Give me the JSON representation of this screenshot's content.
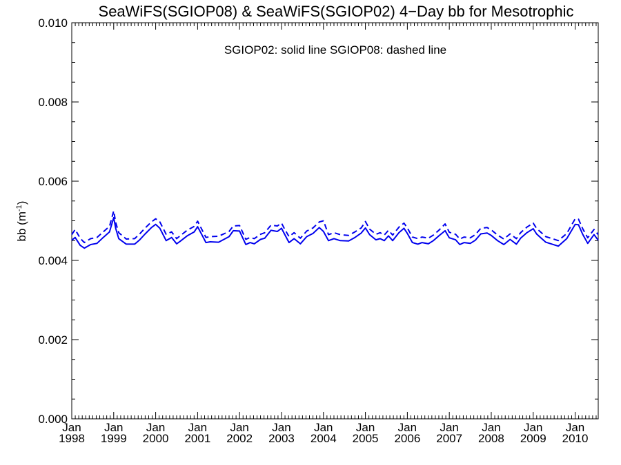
{
  "chart_data": {
    "type": "line",
    "title": "SeaWiFS(SGIOP08) & SeaWiFS(SGIOP02) 4−Day bb for Mesotrophic",
    "annotation": "SGIOP02: solid line   SGIOP08: dashed line",
    "ylabel": "bb (m",
    "ylabel_sup": "-1",
    "ylabel_close": ")",
    "ylim": [
      0.0,
      0.01
    ],
    "xlim": [
      1998.0,
      2010.55
    ],
    "y_ticks": [
      "0.000",
      "0.002",
      "0.004",
      "0.006",
      "0.008",
      "0.010"
    ],
    "x_ticks": [
      {
        "month": "Jan",
        "year": "1998"
      },
      {
        "month": "Jan",
        "year": "1999"
      },
      {
        "month": "Jan",
        "year": "2000"
      },
      {
        "month": "Jan",
        "year": "2001"
      },
      {
        "month": "Jan",
        "year": "2002"
      },
      {
        "month": "Jan",
        "year": "2003"
      },
      {
        "month": "Jan",
        "year": "2004"
      },
      {
        "month": "Jan",
        "year": "2005"
      },
      {
        "month": "Jan",
        "year": "2006"
      },
      {
        "month": "Jan",
        "year": "2007"
      },
      {
        "month": "Jan",
        "year": "2008"
      },
      {
        "month": "Jan",
        "year": "2009"
      },
      {
        "month": "Jan",
        "year": "2010"
      }
    ],
    "line_color": "#0000ee",
    "series": [
      {
        "style": "solid",
        "x": [
          1998.0,
          1998.08,
          1998.2,
          1998.3,
          1998.45,
          1998.6,
          1998.75,
          1998.9,
          1999.0,
          1999.05,
          1999.12,
          1999.3,
          1999.5,
          1999.62,
          1999.75,
          1999.9,
          2000.0,
          2000.1,
          2000.25,
          2000.38,
          2000.5,
          2000.58,
          2000.75,
          2000.92,
          2001.0,
          2001.1,
          2001.2,
          2001.3,
          2001.5,
          2001.75,
          2001.85,
          2002.0,
          2002.15,
          2002.25,
          2002.35,
          2002.5,
          2002.6,
          2002.75,
          2002.9,
          2003.0,
          2003.08,
          2003.18,
          2003.3,
          2003.45,
          2003.6,
          2003.75,
          2003.9,
          2004.0,
          2004.12,
          2004.25,
          2004.4,
          2004.6,
          2004.75,
          2004.9,
          2005.0,
          2005.1,
          2005.25,
          2005.35,
          2005.45,
          2005.55,
          2005.65,
          2005.8,
          2005.92,
          2006.0,
          2006.12,
          2006.25,
          2006.35,
          2006.5,
          2006.62,
          2006.75,
          2006.9,
          2007.0,
          2007.15,
          2007.25,
          2007.35,
          2007.5,
          2007.62,
          2007.75,
          2007.9,
          2008.0,
          2008.15,
          2008.3,
          2008.45,
          2008.6,
          2008.7,
          2008.85,
          2009.0,
          2009.08,
          2009.15,
          2009.3,
          2009.45,
          2009.6,
          2009.8,
          2010.0,
          2010.08,
          2010.18,
          2010.3,
          2010.45,
          2010.55
        ],
        "values": [
          0.00451,
          0.00458,
          0.00438,
          0.00431,
          0.0044,
          0.00443,
          0.00458,
          0.00472,
          0.00508,
          0.0048,
          0.00455,
          0.00441,
          0.00441,
          0.00452,
          0.00467,
          0.00483,
          0.00491,
          0.00481,
          0.0045,
          0.00458,
          0.00442,
          0.00448,
          0.00462,
          0.00472,
          0.00485,
          0.00465,
          0.00445,
          0.00447,
          0.00446,
          0.0046,
          0.00475,
          0.00474,
          0.0044,
          0.00445,
          0.00442,
          0.00453,
          0.00456,
          0.00476,
          0.00473,
          0.00481,
          0.00465,
          0.00445,
          0.00455,
          0.00442,
          0.0046,
          0.00468,
          0.00483,
          0.00473,
          0.0045,
          0.00455,
          0.0045,
          0.00449,
          0.00458,
          0.00469,
          0.00482,
          0.00465,
          0.00452,
          0.00455,
          0.0045,
          0.00462,
          0.0045,
          0.0047,
          0.00481,
          0.00468,
          0.00445,
          0.00441,
          0.00445,
          0.00442,
          0.0045,
          0.00462,
          0.00475,
          0.00457,
          0.00452,
          0.0044,
          0.00445,
          0.00443,
          0.00451,
          0.00467,
          0.00469,
          0.00463,
          0.0045,
          0.0044,
          0.00453,
          0.00441,
          0.00456,
          0.0047,
          0.0048,
          0.00467,
          0.0046,
          0.00446,
          0.00441,
          0.00436,
          0.00455,
          0.00491,
          0.0049,
          0.00466,
          0.00443,
          0.00465,
          0.00451
        ]
      },
      {
        "style": "dashed",
        "x": [
          1998.0,
          1998.08,
          1998.2,
          1998.3,
          1998.45,
          1998.6,
          1998.75,
          1998.9,
          1999.0,
          1999.05,
          1999.12,
          1999.3,
          1999.5,
          1999.62,
          1999.75,
          1999.9,
          2000.0,
          2000.1,
          2000.25,
          2000.38,
          2000.5,
          2000.58,
          2000.75,
          2000.92,
          2001.0,
          2001.1,
          2001.2,
          2001.3,
          2001.5,
          2001.75,
          2001.85,
          2002.0,
          2002.15,
          2002.25,
          2002.35,
          2002.5,
          2002.6,
          2002.75,
          2002.9,
          2003.0,
          2003.08,
          2003.18,
          2003.3,
          2003.45,
          2003.6,
          2003.75,
          2003.9,
          2004.0,
          2004.12,
          2004.25,
          2004.4,
          2004.6,
          2004.75,
          2004.9,
          2005.0,
          2005.1,
          2005.25,
          2005.35,
          2005.45,
          2005.55,
          2005.65,
          2005.8,
          2005.92,
          2006.0,
          2006.12,
          2006.25,
          2006.35,
          2006.5,
          2006.62,
          2006.75,
          2006.9,
          2007.0,
          2007.15,
          2007.25,
          2007.35,
          2007.5,
          2007.62,
          2007.75,
          2007.9,
          2008.0,
          2008.15,
          2008.3,
          2008.45,
          2008.6,
          2008.7,
          2008.85,
          2009.0,
          2009.08,
          2009.15,
          2009.3,
          2009.45,
          2009.6,
          2009.8,
          2010.0,
          2010.08,
          2010.18,
          2010.3,
          2010.45,
          2010.55
        ],
        "values": [
          0.00465,
          0.00478,
          0.00456,
          0.00445,
          0.00455,
          0.00458,
          0.00472,
          0.00486,
          0.00525,
          0.00495,
          0.0047,
          0.00454,
          0.00455,
          0.00467,
          0.00482,
          0.00497,
          0.00505,
          0.00497,
          0.00466,
          0.00472,
          0.00455,
          0.00462,
          0.00476,
          0.00486,
          0.00499,
          0.00478,
          0.00458,
          0.0046,
          0.00461,
          0.00473,
          0.00487,
          0.00488,
          0.00453,
          0.00458,
          0.00455,
          0.00466,
          0.0047,
          0.00489,
          0.00487,
          0.00494,
          0.00478,
          0.0046,
          0.0047,
          0.00456,
          0.00474,
          0.00482,
          0.00497,
          0.005,
          0.00465,
          0.0047,
          0.00465,
          0.00463,
          0.00472,
          0.00482,
          0.00498,
          0.00479,
          0.00466,
          0.0047,
          0.00464,
          0.00476,
          0.00464,
          0.00484,
          0.00494,
          0.00482,
          0.00459,
          0.00455,
          0.00459,
          0.00456,
          0.00464,
          0.00476,
          0.00492,
          0.00471,
          0.00466,
          0.00454,
          0.00459,
          0.00457,
          0.00465,
          0.00481,
          0.00483,
          0.00477,
          0.00464,
          0.00454,
          0.00467,
          0.00455,
          0.0047,
          0.00484,
          0.00494,
          0.00481,
          0.00474,
          0.0046,
          0.00455,
          0.0045,
          0.00468,
          0.00505,
          0.00504,
          0.0048,
          0.00457,
          0.00478,
          0.00465
        ]
      }
    ]
  }
}
